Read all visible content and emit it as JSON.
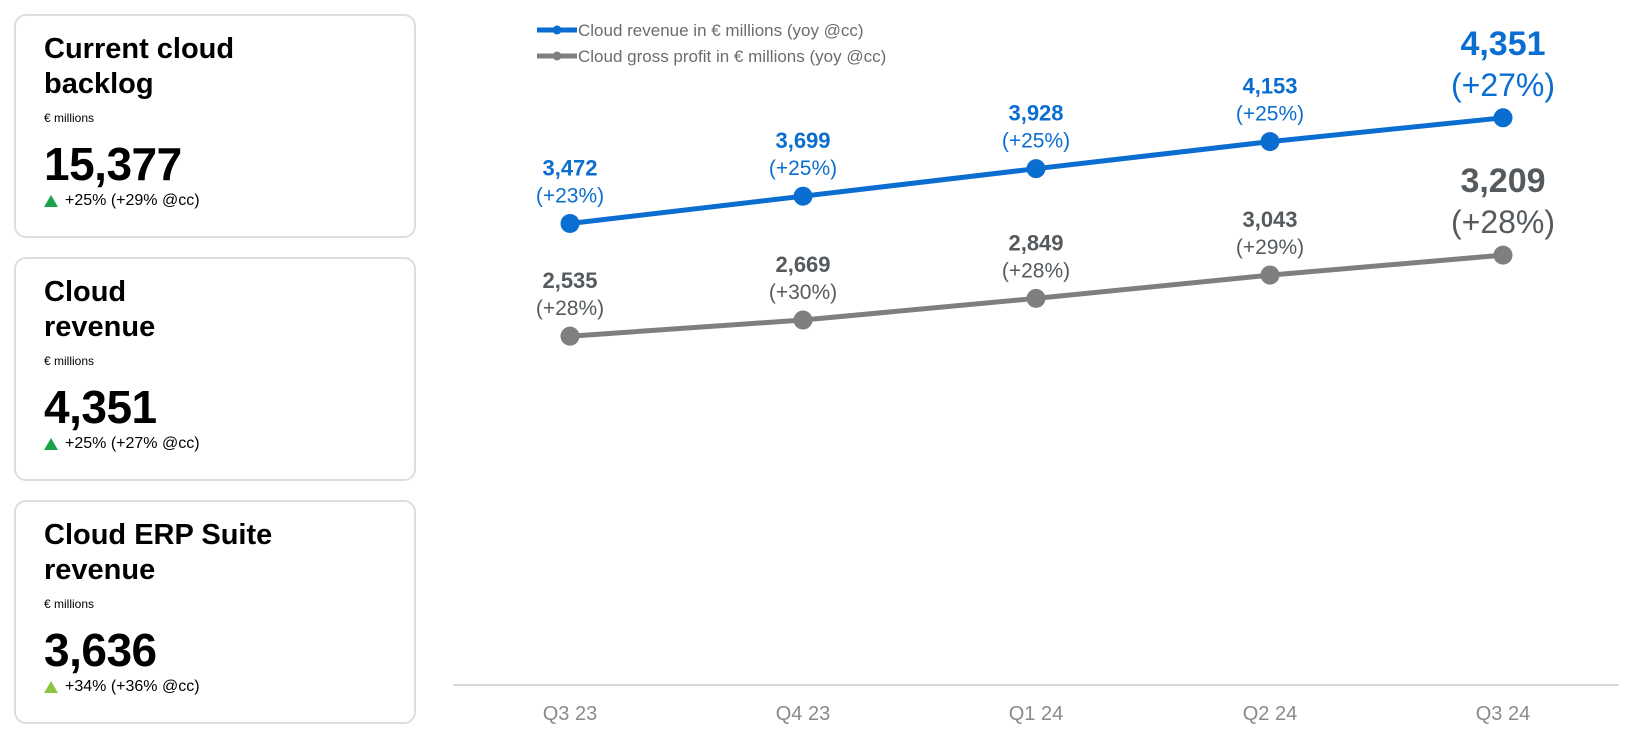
{
  "kpi_cards": [
    {
      "title": "Current cloud\nbacklog",
      "unit": "€ millions",
      "value": "15,377",
      "change": "+25% (+29% @cc)",
      "trend_icon": "triangle-up-icon",
      "trend_color": "#1aa34a"
    },
    {
      "title": "Cloud\nrevenue",
      "unit": "€ millions",
      "value": "4,351",
      "change": "+25% (+27% @cc)",
      "trend_icon": "triangle-up-icon",
      "trend_color": "#1aa34a"
    },
    {
      "title": "Cloud ERP Suite\nrevenue",
      "unit": "€ millions",
      "value": "3,636",
      "change": "+34% (+36% @cc)",
      "trend_icon": "triangle-up-icon",
      "trend_color": "#8cc63f"
    }
  ],
  "chart_data": {
    "type": "line",
    "categories": [
      "Q3 23",
      "Q4 23",
      "Q1 24",
      "Q2 24",
      "Q3 24"
    ],
    "legend_position": "top-left",
    "grid": false,
    "ylim": [
      0,
      5000
    ],
    "series": [
      {
        "name": "Cloud revenue in € millions (yoy @cc)",
        "color": "#0a6ed1",
        "label_color": "#0a6ed1",
        "values": [
          3472,
          3699,
          3928,
          4153,
          4351
        ],
        "value_labels": [
          "3,472",
          "3,699",
          "3,928",
          "4,153",
          "4,351"
        ],
        "change_labels": [
          "(+23%)",
          "(+25%)",
          "(+25%)",
          "(+25%)",
          "(+27%)"
        ]
      },
      {
        "name": "Cloud gross profit in € millions (yoy @cc)",
        "color": "#7f7f7f",
        "label_color": "#555a5e",
        "values": [
          2535,
          2669,
          2849,
          3043,
          3209
        ],
        "value_labels": [
          "2,535",
          "2,669",
          "2,849",
          "3,043",
          "3,209"
        ],
        "change_labels": [
          "(+28%)",
          "(+30%)",
          "(+28%)",
          "(+29%)",
          "(+28%)"
        ]
      }
    ]
  }
}
